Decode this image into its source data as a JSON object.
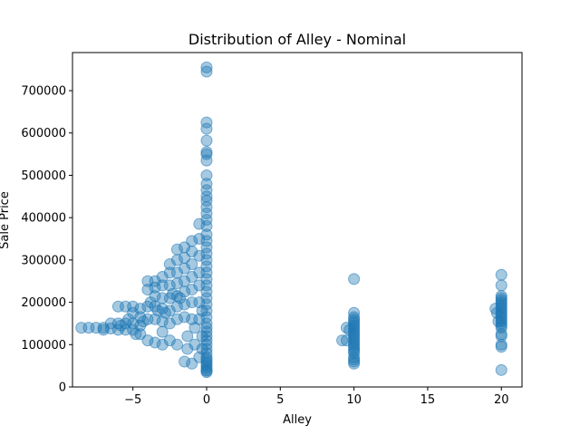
{
  "chart_data": {
    "type": "scatter",
    "title": "Distribution of Alley - Nominal",
    "xlabel": "Alley",
    "ylabel": "Sale Price",
    "xlim": [
      -9.1,
      21.4
    ],
    "ylim": [
      0,
      790000
    ],
    "xticks": [
      -5,
      0,
      5,
      10,
      15,
      20
    ],
    "xtick_labels": [
      "−5",
      "0",
      "5",
      "10",
      "15",
      "20"
    ],
    "yticks": [
      0,
      100000,
      200000,
      300000,
      400000,
      500000,
      600000,
      700000
    ],
    "ytick_labels": [
      "0",
      "100000",
      "200000",
      "300000",
      "400000",
      "500000",
      "600000",
      "700000"
    ],
    "marker_color": "#1f77b4",
    "marker_alpha": 0.4,
    "grid": false,
    "legend": "none",
    "series": [
      {
        "x": [
          -8.5,
          -8.0,
          -7.5,
          -7.0,
          -7.0,
          -6.5,
          -6.5,
          -6.0,
          -6.0,
          -6.0,
          -5.8,
          -5.5,
          -5.5,
          -5.5,
          -5.3,
          -5.0,
          -5.0,
          -5.0,
          -5.0,
          -4.8,
          -4.5,
          -4.5,
          -4.5,
          -4.5,
          -4.3,
          -4.0,
          -4.0,
          -4.0,
          -4.0,
          -4.0,
          -3.8,
          -3.5,
          -3.5,
          -3.5,
          -3.5,
          -3.5,
          -3.5,
          -3.3,
          -3.0,
          -3.0,
          -3.0,
          -3.0,
          -3.0,
          -3.0,
          -3.0,
          -2.8,
          -2.5,
          -2.5,
          -2.5,
          -2.5,
          -2.5,
          -2.5,
          -2.5,
          -2.3,
          -2.0,
          -2.0,
          -2.0,
          -2.0,
          -2.0,
          -2.0,
          -2.0,
          -2.0,
          -1.8,
          -1.5,
          -1.5,
          -1.5,
          -1.5,
          -1.5,
          -1.5,
          -1.5,
          -1.5,
          -1.3,
          -1.3,
          -1.0,
          -1.0,
          -1.0,
          -1.0,
          -1.0,
          -1.0,
          -1.0,
          -1.0,
          -0.8,
          -0.8,
          -0.5,
          -0.5,
          -0.5,
          -0.5,
          -0.5,
          -0.5,
          -0.5,
          -0.5,
          -0.3,
          -0.3,
          -0.3,
          0,
          0,
          0,
          0,
          0,
          0,
          0,
          0,
          0,
          0,
          0,
          0,
          0,
          0,
          0,
          0,
          0,
          0,
          0,
          0,
          0,
          0,
          0,
          0,
          0,
          0,
          0,
          0,
          0,
          0,
          0,
          0,
          0,
          0,
          0,
          0,
          0,
          0,
          0,
          0,
          0,
          0,
          0,
          0,
          0,
          0,
          0,
          0,
          9.2,
          9.5,
          9.5,
          9.7,
          10,
          10,
          10,
          10,
          10,
          10,
          10,
          10,
          10,
          10,
          10,
          10,
          10,
          10,
          10,
          10,
          10,
          10,
          10,
          10,
          10,
          10,
          10,
          10,
          19.6,
          19.7,
          19.8,
          20,
          20,
          20,
          20,
          20,
          20,
          20,
          20,
          20,
          20,
          20,
          20,
          20,
          20,
          20,
          20,
          20,
          20,
          20,
          20,
          20,
          20,
          20
        ],
        "y": [
          140000,
          140000,
          140000,
          135000,
          140000,
          138000,
          150000,
          190000,
          150000,
          135000,
          145000,
          190000,
          150000,
          135000,
          160000,
          190000,
          175000,
          150000,
          135000,
          125000,
          185000,
          165000,
          145000,
          125000,
          155000,
          250000,
          230000,
          190000,
          160000,
          110000,
          200000,
          250000,
          235000,
          215000,
          190000,
          160000,
          105000,
          180000,
          260000,
          240000,
          210000,
          185000,
          155000,
          130000,
          100000,
          175000,
          290000,
          270000,
          240000,
          210000,
          180000,
          150000,
          110000,
          220000,
          325000,
          300000,
          270000,
          245000,
          215000,
          190000,
          160000,
          100000,
          210000,
          330000,
          305000,
          280000,
          250000,
          225000,
          195000,
          165000,
          60000,
          120000,
          90000,
          345000,
          320000,
          290000,
          260000,
          230000,
          200000,
          160000,
          55000,
          140000,
          100000,
          385000,
          350000,
          310000,
          270000,
          240000,
          200000,
          160000,
          70000,
          180000,
          120000,
          90000,
          755000,
          745000,
          625000,
          610000,
          582000,
          555000,
          550000,
          535000,
          500000,
          480000,
          465000,
          450000,
          440000,
          425000,
          410000,
          395000,
          380000,
          360000,
          345000,
          330000,
          315000,
          300000,
          285000,
          270000,
          255000,
          240000,
          225000,
          210000,
          195000,
          180000,
          165000,
          150000,
          140000,
          130000,
          120000,
          110000,
          100000,
          90000,
          80000,
          70000,
          60000,
          50000,
          40000,
          35000,
          38000,
          45000,
          55000,
          65000,
          110000,
          110000,
          140000,
          135000,
          255000,
          175000,
          165000,
          160000,
          155000,
          150000,
          145000,
          140000,
          135000,
          130000,
          125000,
          120000,
          115000,
          110000,
          105000,
          100000,
          95000,
          90000,
          85000,
          80000,
          70000,
          65000,
          60000,
          55000,
          185000,
          175000,
          155000,
          265000,
          240000,
          215000,
          210000,
          205000,
          200000,
          195000,
          190000,
          185000,
          180000,
          175000,
          170000,
          165000,
          160000,
          155000,
          150000,
          145000,
          140000,
          125000,
          120000,
          100000,
          95000,
          40000
        ]
      }
    ]
  }
}
